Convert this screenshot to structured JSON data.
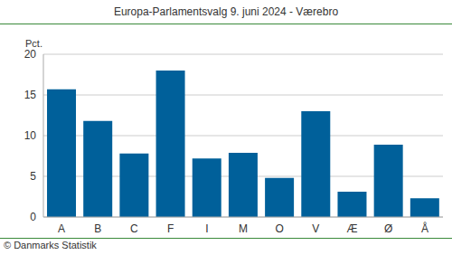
{
  "chart_data": {
    "type": "bar",
    "title": "Europa-Parlamentsvalg 9. juni 2024 - Værebro",
    "ylabel": "Pct.",
    "source": "© Danmarks Statistik",
    "categories": [
      "A",
      "B",
      "C",
      "F",
      "I",
      "M",
      "O",
      "V",
      "Æ",
      "Ø",
      "Å"
    ],
    "values": [
      15.7,
      11.8,
      7.8,
      18.0,
      7.2,
      7.9,
      4.8,
      13.0,
      3.1,
      8.9,
      2.3
    ],
    "color": "#00609a",
    "ylim": [
      0,
      20
    ],
    "yticks": [
      0,
      5,
      10,
      15,
      20
    ],
    "grid": true
  }
}
